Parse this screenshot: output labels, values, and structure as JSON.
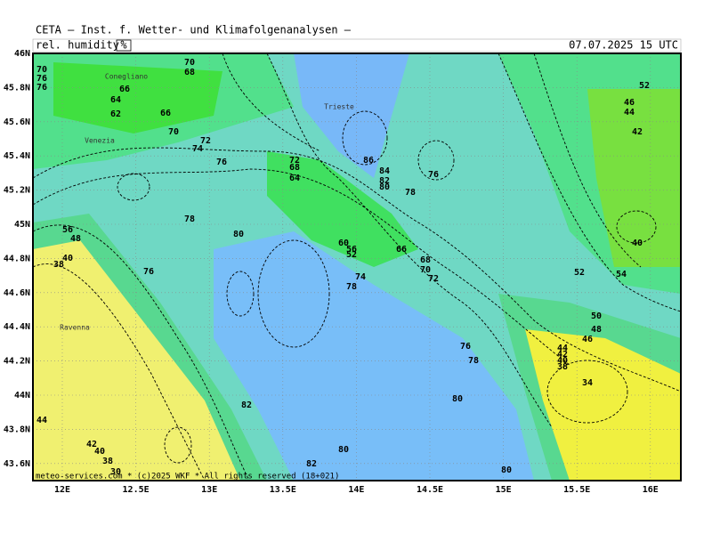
{
  "header": {
    "title": "CETA – Inst. f. Wetter- und Klimafolgenanalysen –",
    "field": "rel. humidity",
    "unit": "%",
    "valid": "07.07.2025 15 UTC"
  },
  "axes": {
    "lat": [
      "46N",
      "45.8N",
      "45.6N",
      "45.4N",
      "45.2N",
      "45N",
      "44.8N",
      "44.6N",
      "44.4N",
      "44.2N",
      "44N",
      "43.8N",
      "43.6N"
    ],
    "lon": [
      "12E",
      "12.5E",
      "13E",
      "13.5E",
      "14E",
      "14.5E",
      "15E",
      "15.5E",
      "16E"
    ]
  },
  "places": [
    "Conegliano",
    "Trieste",
    "Venezia",
    "Ravenna"
  ],
  "contour_labels": [
    70,
    76,
    76,
    70,
    68,
    66,
    64,
    62,
    66,
    70,
    72,
    74,
    76,
    78,
    80,
    56,
    48,
    40,
    38,
    76,
    72,
    68,
    64,
    86,
    84,
    82,
    80,
    78,
    76,
    60,
    56,
    52,
    66,
    68,
    70,
    72,
    74,
    78,
    76,
    78,
    80,
    82,
    80,
    82,
    80,
    52,
    54,
    50,
    48,
    46,
    44,
    42,
    40,
    38,
    34,
    52,
    46,
    44,
    42,
    40,
    44,
    42,
    40,
    38,
    30
  ],
  "footer": "meteo-services.com * (c)2025 WKF * All rights reserved (18+021)"
}
